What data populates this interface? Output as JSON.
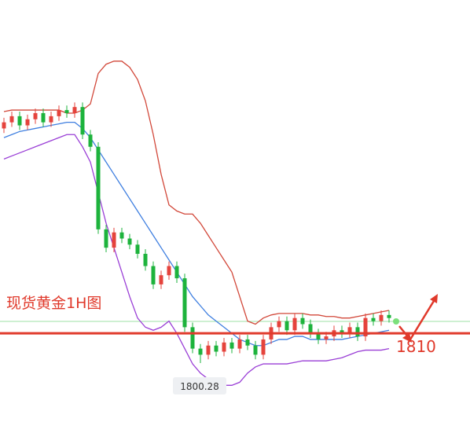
{
  "chart_data": {
    "type": "candlestick",
    "title": "现货黄金1H图",
    "ylim": [
      1781,
      1919
    ],
    "colors": {
      "up": "#e5433c",
      "down": "#1db33c",
      "level": "#e0392b"
    },
    "level": {
      "value": 1810,
      "label": "1810"
    },
    "low_marker": {
      "value": 1800.28,
      "label": "1800.28"
    },
    "open": [
      1877,
      1879,
      1881,
      1878,
      1880,
      1882,
      1879,
      1881,
      1883,
      1882,
      1884,
      1875,
      1871,
      1844,
      1838,
      1843,
      1841,
      1839,
      1836,
      1832,
      1826,
      1829,
      1832,
      1828,
      1812,
      1805,
      1803,
      1806,
      1804,
      1807,
      1805,
      1808,
      1806,
      1803,
      1808,
      1812,
      1814,
      1811,
      1815,
      1813,
      1810,
      1808,
      1809,
      1811,
      1810,
      1812,
      1809,
      1815,
      1814,
      1816
    ],
    "high": [
      1880.5,
      1882.5,
      1882.5,
      1881.5,
      1883.5,
      1883.5,
      1882.5,
      1884.5,
      1884.5,
      1885.5,
      1885.5,
      1876.5,
      1872.5,
      1845.5,
      1844.5,
      1844.5,
      1842.5,
      1840.5,
      1837.5,
      1833.5,
      1830.5,
      1833.5,
      1833.5,
      1829.5,
      1813.5,
      1806.5,
      1807.5,
      1807.5,
      1808.5,
      1808.5,
      1809.5,
      1809.5,
      1807.5,
      1809.5,
      1813.5,
      1815.5,
      1815.5,
      1816.5,
      1816.5,
      1814.5,
      1811.5,
      1810.5,
      1812.5,
      1812.5,
      1813.5,
      1813.5,
      1816.5,
      1816.5,
      1817.5,
      1817.5
    ],
    "low": [
      1875.5,
      1877.5,
      1876.5,
      1876.5,
      1878.5,
      1877.5,
      1877.5,
      1879.5,
      1880.5,
      1880.5,
      1873.5,
      1869.5,
      1842.5,
      1836.5,
      1836.5,
      1839.5,
      1837.5,
      1834.5,
      1830.5,
      1824.5,
      1824.5,
      1827.5,
      1826.5,
      1810.5,
      1803.5,
      1800.28,
      1801.5,
      1802.5,
      1802.5,
      1803.5,
      1803.5,
      1804.5,
      1801.5,
      1801.5,
      1806.5,
      1810.5,
      1809.5,
      1809.5,
      1811.5,
      1808.5,
      1806.5,
      1806.5,
      1807.5,
      1808.5,
      1808.5,
      1807.5,
      1807.5,
      1812.5,
      1812.5,
      1813.5
    ],
    "close": [
      1879,
      1881,
      1878,
      1880,
      1882,
      1879,
      1881,
      1883,
      1882,
      1884,
      1875,
      1871,
      1844,
      1838,
      1843,
      1841,
      1839,
      1836,
      1832,
      1826,
      1829,
      1832,
      1828,
      1812,
      1805,
      1803,
      1806,
      1804,
      1807,
      1805,
      1808,
      1806,
      1803,
      1808,
      1812,
      1814,
      1811,
      1815,
      1813,
      1810,
      1808,
      1809,
      1811,
      1810,
      1812,
      1809,
      1815,
      1814,
      1816,
      1815
    ],
    "series": [
      {
        "color": "#d2483a",
        "values": [
          1882.5,
          1883,
          1883,
          1883,
          1883,
          1883,
          1883,
          1883,
          1882,
          1882,
          1883,
          1885,
          1895,
          1898,
          1899,
          1899,
          1897,
          1893,
          1886,
          1875,
          1862,
          1852,
          1850,
          1849,
          1849,
          1846,
          1842,
          1838,
          1834,
          1830,
          1822,
          1814,
          1813,
          1815,
          1816,
          1816.5,
          1816.5,
          1816.5,
          1816.5,
          1816,
          1816,
          1815.5,
          1815.5,
          1815,
          1815,
          1815.5,
          1816,
          1816.5,
          1817,
          1817.5
        ]
      },
      {
        "color": "#3f7fe0",
        "values": [
          1874,
          1875,
          1876,
          1876.5,
          1877,
          1877.5,
          1878,
          1878.5,
          1879,
          1879,
          1877,
          1874,
          1870,
          1866,
          1862,
          1858,
          1854,
          1850,
          1846,
          1842,
          1838,
          1834,
          1830,
          1826,
          1822,
          1819,
          1816,
          1814,
          1812,
          1810,
          1808,
          1807,
          1806,
          1806,
          1807,
          1808,
          1808,
          1809,
          1809,
          1808,
          1808,
          1808,
          1808,
          1808,
          1808.5,
          1809,
          1809.5,
          1810,
          1810.5,
          1811
        ]
      },
      {
        "color": "#9a3fd6",
        "values": [
          1867,
          1868,
          1869,
          1870,
          1871,
          1872,
          1873,
          1874,
          1875,
          1875,
          1871,
          1866,
          1856,
          1846,
          1838,
          1830,
          1822,
          1815,
          1812,
          1811,
          1812,
          1814,
          1810,
          1805,
          1800,
          1797,
          1795,
          1794,
          1793,
          1793,
          1794,
          1797,
          1799,
          1800,
          1800,
          1800,
          1800,
          1800.5,
          1801,
          1801,
          1801,
          1801,
          1801.5,
          1802,
          1803,
          1804,
          1804.5,
          1804.5,
          1804.5,
          1805
        ]
      }
    ]
  }
}
